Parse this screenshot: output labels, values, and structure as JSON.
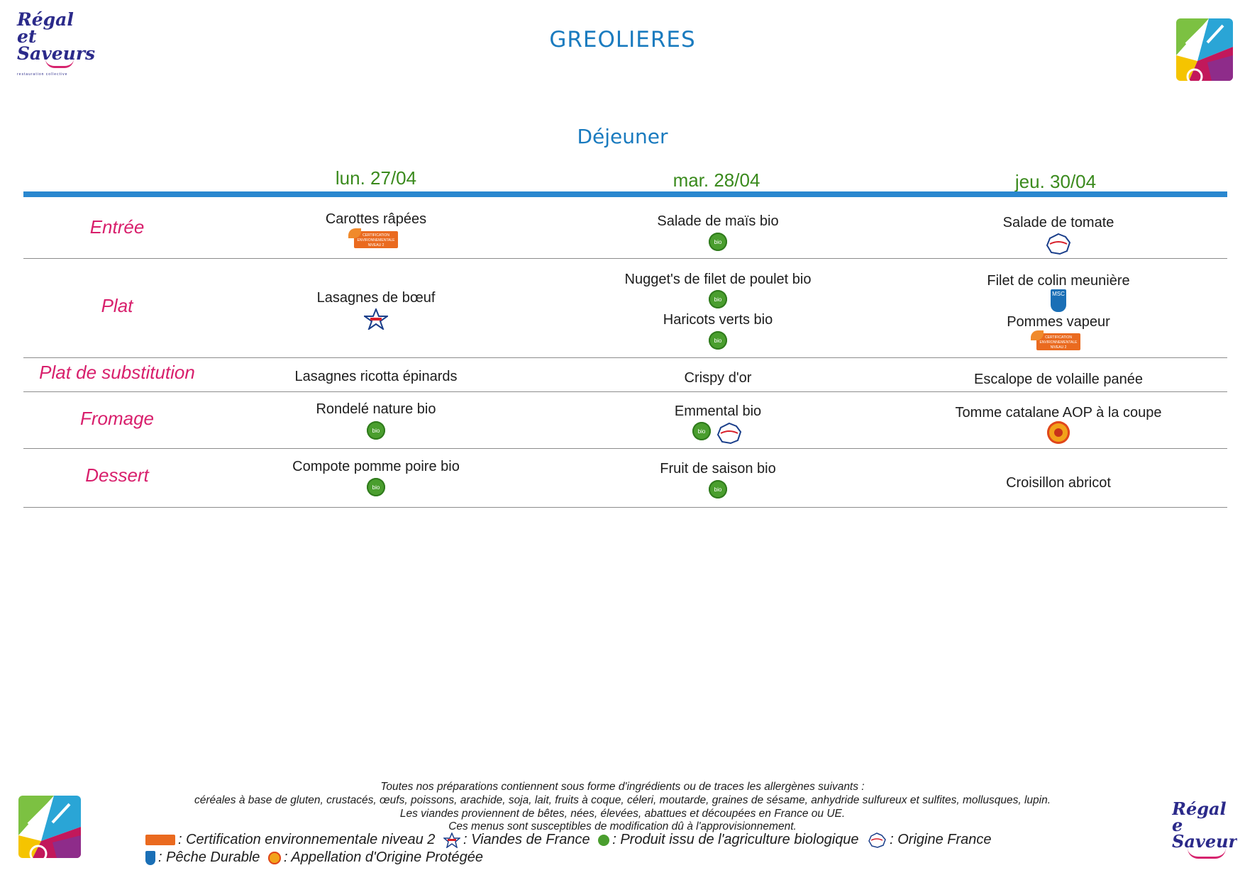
{
  "header": {
    "logo_left": {
      "line1": "Régal et",
      "line2": "Saveurs",
      "subtitle": "restauration collective"
    },
    "site_title": "GREOLIERES",
    "meal_title": "Déjeuner",
    "logo_right_bottom": {
      "line1": "Régal e",
      "line2": "Saveur"
    }
  },
  "days": [
    "lun. 27/04",
    "mar. 28/04",
    "jeu. 30/04"
  ],
  "courses": [
    "Entrée",
    "Plat",
    "Plat de substitution",
    "Fromage",
    "Dessert"
  ],
  "menu": {
    "entree": [
      {
        "dish": "Carottes râpées",
        "labels": [
          "certification"
        ]
      },
      {
        "dish": "Salade de maïs bio",
        "labels": [
          "bio"
        ]
      },
      {
        "dish": "Salade de tomate",
        "labels": [
          "origine-france"
        ]
      }
    ],
    "plat": [
      {
        "dish": "Lasagnes de bœuf",
        "labels": [
          "viandes-de-france"
        ]
      },
      {
        "dish": "Nugget's de filet de poulet bio",
        "labels": [
          "bio"
        ],
        "dish2": "Haricots verts bio",
        "labels2": [
          "bio"
        ]
      },
      {
        "dish": "Filet de colin meunière",
        "labels": [
          "msc"
        ],
        "dish2": "Pommes vapeur",
        "labels2": [
          "certification"
        ]
      }
    ],
    "substitution": [
      {
        "dish": "Lasagnes ricotta épinards"
      },
      {
        "dish": "Crispy d'or"
      },
      {
        "dish": "Escalope de volaille panée"
      }
    ],
    "fromage": [
      {
        "dish": "Rondelé nature bio",
        "labels": [
          "bio"
        ]
      },
      {
        "dish": "Emmental bio",
        "labels": [
          "bio",
          "origine-france"
        ]
      },
      {
        "dish": "Tomme catalane AOP à la coupe",
        "labels": [
          "aop"
        ]
      }
    ],
    "dessert": [
      {
        "dish": "Compote pomme poire bio",
        "labels": [
          "bio"
        ]
      },
      {
        "dish": "Fruit de saison bio",
        "labels": [
          "bio"
        ]
      },
      {
        "dish": "Croisillon abricot",
        "labels": []
      }
    ]
  },
  "icon_text": {
    "certification": "CERTIFICATION ENVIRONNEMENTALE NIVEAU 2",
    "bio": "bio",
    "msc": "MSC"
  },
  "footer": {
    "allergens_intro": "Toutes nos préparations contiennent sous forme d'ingrédients ou de traces les allergènes suivants :",
    "allergens_list": "céréales à base de gluten, crustacés, œufs, poissons, arachide, soja, lait, fruits à coque, céleri, moutarde, graines de sésame, anhydride sulfureux et sulfites, mollusques, lupin.",
    "meat_origin": "Les viandes proviennent de bêtes, nées, élevées, abattues et découpées en France ou UE.",
    "disclaimer": "Ces menus sont susceptibles de modification dû à l'approvisionnement.",
    "legend": {
      "certification": ": Certification environnementale niveau 2",
      "viandes": ": Viandes de France",
      "bio": ": Produit issu de l'agriculture biologique",
      "origine": ": Origine France",
      "msc": ": Pêche Durable",
      "aop": ": Appellation d'Origine Protégée"
    }
  },
  "colors": {
    "title_blue": "#1a7bbf",
    "day_green": "#3a8a1d",
    "course_pink": "#d81f6c",
    "bar_blue": "#2a87cf"
  }
}
